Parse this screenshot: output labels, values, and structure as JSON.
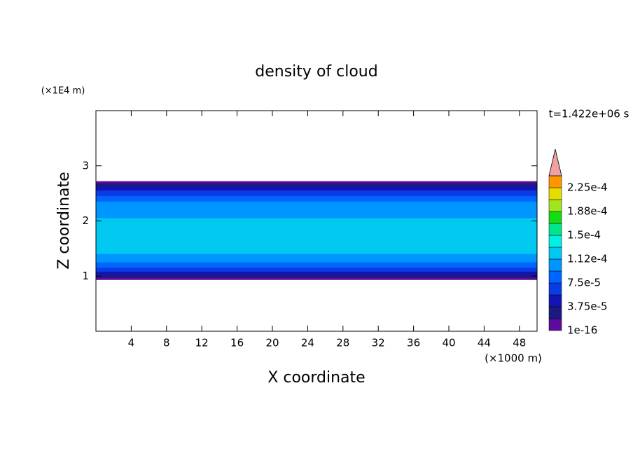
{
  "chart_data": {
    "type": "contour",
    "title": "density of cloud",
    "x_label": "X coordinate",
    "y_label": "Z coordinate",
    "x_unit": "(×1000 m)",
    "y_unit": "(×1E4 m)",
    "time_label": "t=1.422e+06 s",
    "xlim": [
      0,
      50
    ],
    "xticks": [
      4,
      8,
      12,
      16,
      20,
      24,
      28,
      32,
      36,
      40,
      44,
      48
    ],
    "ylim": [
      0,
      4
    ],
    "yticks": [
      1,
      2,
      3
    ],
    "field": [
      {
        "z": [
          0.93,
          2.72
        ],
        "value": 1e-16
      },
      {
        "z": [
          0.97,
          2.68
        ],
        "value": 1.9e-05
      },
      {
        "z": [
          1.02,
          2.62
        ],
        "value": 3.8e-05
      },
      {
        "z": [
          1.08,
          2.55
        ],
        "value": 5.7e-05
      },
      {
        "z": [
          1.15,
          2.45
        ],
        "value": 7.6e-05
      },
      {
        "z": [
          1.25,
          2.35
        ],
        "value": 9.4e-05
      },
      {
        "z": [
          1.4,
          2.05
        ],
        "value": 0.000113
      }
    ],
    "colorbar": {
      "levels": [
        0,
        1.875e-05,
        3.75e-05,
        5.625e-05,
        7.5e-05,
        9.375e-05,
        0.0001125,
        0.00013125,
        0.00015,
        0.00016875,
        0.0001875,
        0.00020625,
        0.000225,
        0.00024375
      ],
      "colors": [
        "#5c0aa0",
        "#1a1a80",
        "#1414b4",
        "#0a3ce6",
        "#0064ff",
        "#0096ff",
        "#00c8f0",
        "#00f0e6",
        "#00e68c",
        "#14dc14",
        "#a0e61e",
        "#e6dc00",
        "#ff9600",
        "#ff3c00"
      ],
      "ticks": [
        {
          "value": 0,
          "label": "1e-16"
        },
        {
          "value": 3.75e-05,
          "label": "3.75e-5"
        },
        {
          "value": 7.5e-05,
          "label": "7.5e-5"
        },
        {
          "value": 0.0001125,
          "label": "1.12e-4"
        },
        {
          "value": 0.00015,
          "label": "1.5e-4"
        },
        {
          "value": 0.0001875,
          "label": "1.88e-4"
        },
        {
          "value": 0.000225,
          "label": "2.25e-4"
        }
      ],
      "over_color": "#f0a0a0"
    }
  }
}
